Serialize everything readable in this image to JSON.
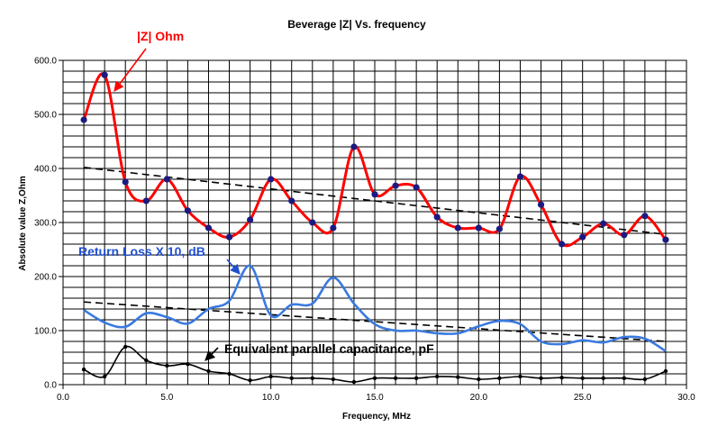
{
  "chart_data": {
    "type": "line",
    "title": "Beverage |Z| Vs. frequency",
    "xlabel": "Frequency, MHz",
    "ylabel": "Absolute value Z,Ohm",
    "xlim": [
      0,
      30
    ],
    "ylim": [
      0,
      600
    ],
    "x_ticks": [
      "0.0",
      "5.0",
      "10.0",
      "15.0",
      "20.0",
      "25.0",
      "30.0"
    ],
    "y_ticks": [
      "0.0",
      "100.0",
      "200.0",
      "300.0",
      "400.0",
      "500.0",
      "600.0"
    ],
    "grid": true,
    "legend": "none",
    "colors": {
      "impedance": "#ff0000",
      "marker": "#1a1a80",
      "return_loss": "#3a7ae0",
      "capacitance": "#000000",
      "trend": "#000000",
      "annotation_blue": "#2050d0"
    },
    "series": [
      {
        "name": "|Z| Ohm",
        "x": [
          1,
          2,
          3,
          4,
          5,
          6,
          7,
          8,
          9,
          10,
          11,
          12,
          13,
          14,
          15,
          16,
          17,
          18,
          19,
          20,
          21,
          22,
          23,
          24,
          25,
          26,
          27,
          28,
          29
        ],
        "y": [
          490,
          573,
          375,
          340,
          380,
          322,
          290,
          273,
          305,
          380,
          340,
          300,
          290,
          440,
          352,
          368,
          365,
          310,
          290,
          290,
          288,
          385,
          333,
          260,
          273,
          298,
          277,
          312,
          268
        ]
      },
      {
        "name": "Return Loss X 10, dB",
        "x": [
          1,
          2,
          3,
          4,
          5,
          6,
          7,
          8,
          9,
          10,
          11,
          12,
          13,
          14,
          15,
          16,
          17,
          18,
          19,
          20,
          21,
          22,
          23,
          24,
          25,
          26,
          27,
          28,
          29
        ],
        "y": [
          138,
          115,
          107,
          132,
          125,
          113,
          140,
          155,
          220,
          128,
          148,
          150,
          198,
          150,
          112,
          100,
          100,
          95,
          95,
          108,
          118,
          112,
          80,
          75,
          82,
          78,
          88,
          85,
          62
        ]
      },
      {
        "name": "Equivalent parallel capacitance, pF",
        "x": [
          1,
          2,
          3,
          4,
          5,
          6,
          7,
          8,
          9,
          10,
          11,
          12,
          13,
          14,
          15,
          16,
          17,
          18,
          19,
          20,
          21,
          22,
          23,
          24,
          25,
          26,
          27,
          28,
          29
        ],
        "y": [
          28,
          15,
          70,
          45,
          35,
          38,
          25,
          20,
          8,
          15,
          12,
          12,
          10,
          5,
          12,
          12,
          12,
          15,
          14,
          10,
          12,
          15,
          12,
          13,
          12,
          12,
          12,
          10,
          25
        ]
      }
    ],
    "trendlines": [
      {
        "x": [
          1,
          29
        ],
        "y": [
          402,
          278
        ]
      },
      {
        "x": [
          1,
          29
        ],
        "y": [
          153,
          80
        ]
      }
    ],
    "annotations": [
      {
        "text": "|Z| Ohm",
        "color": "#ff0000"
      },
      {
        "text": "Return Loss X 10, dB",
        "color": "#2050d0"
      },
      {
        "text": "Equivalent parallel capacitance, pF",
        "color": "#000000"
      }
    ]
  }
}
